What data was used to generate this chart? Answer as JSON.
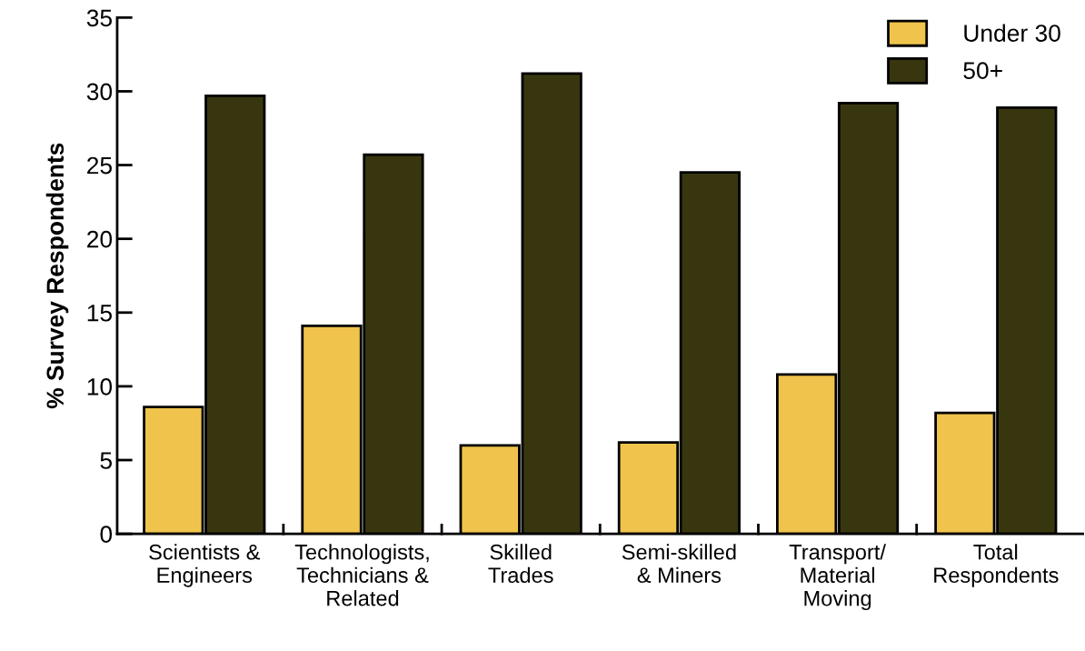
{
  "chart_data": {
    "type": "bar",
    "ylabel": "% Survey Respondents",
    "categories": [
      "Scientists &\nEngineers",
      "Technologists,\nTechnicians &\nRelated",
      "Skilled\nTrades",
      "Semi-skilled\n& Miners",
      "Transport/\nMaterial\nMoving",
      "Total\nRespondents"
    ],
    "series": [
      {
        "name": "Under 30",
        "color": "#f0c44c",
        "values": [
          8.6,
          14.1,
          6.0,
          6.2,
          10.8,
          8.2
        ]
      },
      {
        "name": "50+",
        "color": "#38360f",
        "values": [
          29.7,
          25.7,
          31.2,
          24.5,
          29.2,
          28.9
        ]
      }
    ],
    "ylim": [
      0,
      35
    ],
    "yticks": [
      0,
      5,
      10,
      15,
      20,
      25,
      30,
      35
    ],
    "grid": false,
    "legend": "top right"
  }
}
